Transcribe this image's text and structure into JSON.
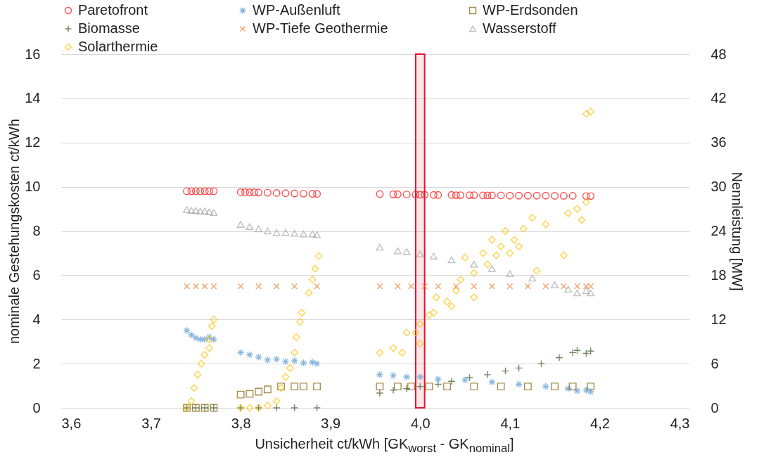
{
  "chart_data": {
    "type": "scatter",
    "xlabel": "Unsicherheit ct/kWh [GK$_{worst}$ - GK$_{nominal}$]",
    "ylabel": "nominale Gestehungskosten ct/kWh",
    "y2label": "Nennleistung [MW]",
    "xlim": [
      3.6,
      4.3
    ],
    "xticks": [
      {
        "value": 3.6,
        "label": "3,6"
      },
      {
        "value": 3.7,
        "label": "3,7"
      },
      {
        "value": 3.8,
        "label": "3,8"
      },
      {
        "value": 3.9,
        "label": "3,9"
      },
      {
        "value": 4.0,
        "label": "4,0"
      },
      {
        "value": 4.1,
        "label": "4,1"
      },
      {
        "value": 4.2,
        "label": "4,2"
      },
      {
        "value": 4.3,
        "label": "4,3"
      }
    ],
    "ylim": [
      0,
      16
    ],
    "yticks": [
      0,
      2,
      4,
      6,
      8,
      10,
      12,
      14,
      16
    ],
    "y2lim": [
      0,
      48
    ],
    "y2ticks": [
      0,
      6,
      12,
      18,
      24,
      30,
      36,
      42,
      48
    ],
    "grid": "y",
    "legend": "top",
    "bands": [
      {
        "axis": "x",
        "from": 3.995,
        "to": 4.005,
        "color": "#e8112d"
      }
    ],
    "series": [
      {
        "name": "Paretofront",
        "color": "#ff0000",
        "marker": "circle",
        "x": [
          3.74,
          3.745,
          3.75,
          3.755,
          3.76,
          3.765,
          3.77,
          3.8,
          3.805,
          3.81,
          3.815,
          3.82,
          3.83,
          3.84,
          3.85,
          3.86,
          3.87,
          3.88,
          3.885,
          3.955,
          3.97,
          3.975,
          3.985,
          3.995,
          4.0,
          4.005,
          4.015,
          4.02,
          4.035,
          4.04,
          4.045,
          4.055,
          4.06,
          4.07,
          4.075,
          4.08,
          4.09,
          4.1,
          4.11,
          4.12,
          4.13,
          4.14,
          4.15,
          4.16,
          4.17,
          4.185,
          4.19
        ],
        "values": [
          9.8,
          9.8,
          9.8,
          9.8,
          9.8,
          9.8,
          9.8,
          9.76,
          9.76,
          9.75,
          9.75,
          9.74,
          9.73,
          9.72,
          9.71,
          9.7,
          9.69,
          9.68,
          9.68,
          9.67,
          9.66,
          9.66,
          9.65,
          9.65,
          9.64,
          9.64,
          9.63,
          9.63,
          9.63,
          9.62,
          9.62,
          9.62,
          9.62,
          9.61,
          9.61,
          9.61,
          9.61,
          9.6,
          9.6,
          9.6,
          9.6,
          9.6,
          9.59,
          9.59,
          9.59,
          9.58,
          9.58
        ]
      },
      {
        "name": "WP-Außenluft",
        "color": "#5b9bd5",
        "marker": "cross",
        "axis": "y2",
        "x": [
          3.74,
          3.745,
          3.75,
          3.755,
          3.76,
          3.765,
          3.77,
          3.8,
          3.81,
          3.82,
          3.83,
          3.84,
          3.85,
          3.86,
          3.87,
          3.88,
          3.885,
          3.955,
          3.97,
          3.985,
          4.0,
          4.02,
          4.05,
          4.08,
          4.11,
          4.14,
          4.165,
          4.175,
          4.185,
          4.19
        ],
        "values": [
          10.5,
          9.9,
          9.5,
          9.3,
          9.3,
          9.6,
          9.3,
          7.5,
          7.2,
          6.9,
          6.5,
          6.6,
          6.3,
          6.4,
          6.1,
          6.2,
          6.0,
          4.5,
          4.4,
          4.2,
          4.2,
          3.9,
          3.8,
          3.5,
          3.2,
          2.9,
          2.6,
          2.3,
          2.4,
          2.2
        ]
      },
      {
        "name": "WP-Erdsonden",
        "color": "#806000",
        "marker": "square",
        "axis": "y2",
        "x": [
          3.74,
          3.75,
          3.76,
          3.77,
          3.8,
          3.81,
          3.82,
          3.83,
          3.845,
          3.86,
          3.87,
          3.885,
          3.955,
          3.975,
          3.99,
          4.01,
          4.03,
          4.06,
          4.09,
          4.12,
          4.15,
          4.17,
          4.19
        ],
        "values": [
          0,
          0,
          0,
          0,
          1.8,
          1.9,
          2.2,
          2.5,
          2.9,
          2.9,
          2.9,
          2.9,
          2.9,
          2.9,
          2.9,
          2.9,
          2.9,
          2.9,
          2.9,
          2.9,
          2.9,
          2.9,
          2.9
        ]
      },
      {
        "name": "Biomasse",
        "color": "#375623",
        "marker": "cross",
        "axis": "y2",
        "x": [
          3.74,
          3.75,
          3.76,
          3.77,
          3.8,
          3.82,
          3.84,
          3.86,
          3.885,
          3.955,
          3.97,
          3.985,
          4.0,
          4.02,
          4.035,
          4.055,
          4.075,
          4.095,
          4.11,
          4.135,
          4.155,
          4.17,
          4.175,
          4.185,
          4.19
        ],
        "values": [
          0,
          0,
          0,
          0,
          0,
          0,
          0,
          0,
          0,
          2.0,
          2.4,
          2.6,
          2.9,
          3.2,
          3.6,
          4.1,
          4.5,
          5.0,
          5.4,
          6.0,
          6.8,
          7.5,
          7.8,
          7.4,
          7.7
        ]
      },
      {
        "name": "WP-Tiefe Geothermie",
        "color": "#ed7d31",
        "marker": "x",
        "axis": "y2",
        "x": [
          3.74,
          3.75,
          3.76,
          3.77,
          3.8,
          3.82,
          3.84,
          3.86,
          3.885,
          3.955,
          3.975,
          3.99,
          4.005,
          4.02,
          4.04,
          4.06,
          4.08,
          4.1,
          4.12,
          4.14,
          4.16,
          4.175,
          4.185,
          4.19
        ],
        "values": [
          16.5,
          16.5,
          16.5,
          16.5,
          16.5,
          16.5,
          16.5,
          16.5,
          16.5,
          16.5,
          16.5,
          16.5,
          16.5,
          16.5,
          16.5,
          16.5,
          16.5,
          16.5,
          16.5,
          16.5,
          16.5,
          16.5,
          16.5,
          16.5
        ]
      },
      {
        "name": "Wasserstoff",
        "color": "#a5a5a5",
        "marker": "triangle",
        "axis": "y2",
        "x": [
          3.74,
          3.745,
          3.75,
          3.755,
          3.76,
          3.765,
          3.77,
          3.8,
          3.81,
          3.82,
          3.83,
          3.84,
          3.85,
          3.86,
          3.87,
          3.88,
          3.885,
          3.955,
          3.975,
          3.985,
          4.0,
          4.015,
          4.035,
          4.06,
          4.08,
          4.1,
          4.125,
          4.15,
          4.165,
          4.175,
          4.185,
          4.19
        ],
        "values": [
          26.9,
          26.8,
          26.8,
          26.7,
          26.7,
          26.6,
          26.5,
          24.9,
          24.6,
          24.3,
          24.0,
          23.8,
          23.8,
          23.7,
          23.6,
          23.6,
          23.5,
          21.8,
          21.3,
          21.2,
          20.9,
          20.6,
          20.1,
          19.5,
          18.9,
          18.2,
          17.6,
          16.7,
          16.1,
          15.6,
          15.9,
          15.6
        ]
      },
      {
        "name": "Solarthermie",
        "color": "#ffc000",
        "marker": "diamond",
        "axis": "y2",
        "x": [
          3.74,
          3.745,
          3.748,
          3.752,
          3.756,
          3.76,
          3.765,
          3.765,
          3.768,
          3.77,
          3.8,
          3.81,
          3.82,
          3.83,
          3.84,
          3.845,
          3.85,
          3.855,
          3.86,
          3.862,
          3.866,
          3.868,
          3.876,
          3.88,
          3.883,
          3.887,
          3.955,
          3.97,
          3.98,
          3.985,
          3.995,
          4.0,
          4.0,
          4.01,
          4.015,
          4.018,
          4.03,
          4.035,
          4.04,
          4.045,
          4.05,
          4.06,
          4.06,
          4.07,
          4.075,
          4.08,
          4.085,
          4.09,
          4.095,
          4.1,
          4.105,
          4.11,
          4.115,
          4.125,
          4.13,
          4.14,
          4.16,
          4.165,
          4.175,
          4.18,
          4.185,
          4.185,
          4.19
        ],
        "values": [
          0,
          0.9,
          2.7,
          4.5,
          6.0,
          7.2,
          8.1,
          9.3,
          11.1,
          12.0,
          0,
          0,
          0,
          0.3,
          0.9,
          2.7,
          4.2,
          5.4,
          7.5,
          9.6,
          11.7,
          12.9,
          15.6,
          17.4,
          18.9,
          20.6,
          7.5,
          8.1,
          7.5,
          10.2,
          10.2,
          8.7,
          11.4,
          12.6,
          12.9,
          15.0,
          14.4,
          13.8,
          15.9,
          17.4,
          20.4,
          15.0,
          18.3,
          21.0,
          19.5,
          22.8,
          20.7,
          21.9,
          24.0,
          21.0,
          22.8,
          21.9,
          24.3,
          25.8,
          18.6,
          24.9,
          20.7,
          26.4,
          27.0,
          25.5,
          27.9,
          39.9,
          40.2
        ]
      }
    ]
  }
}
